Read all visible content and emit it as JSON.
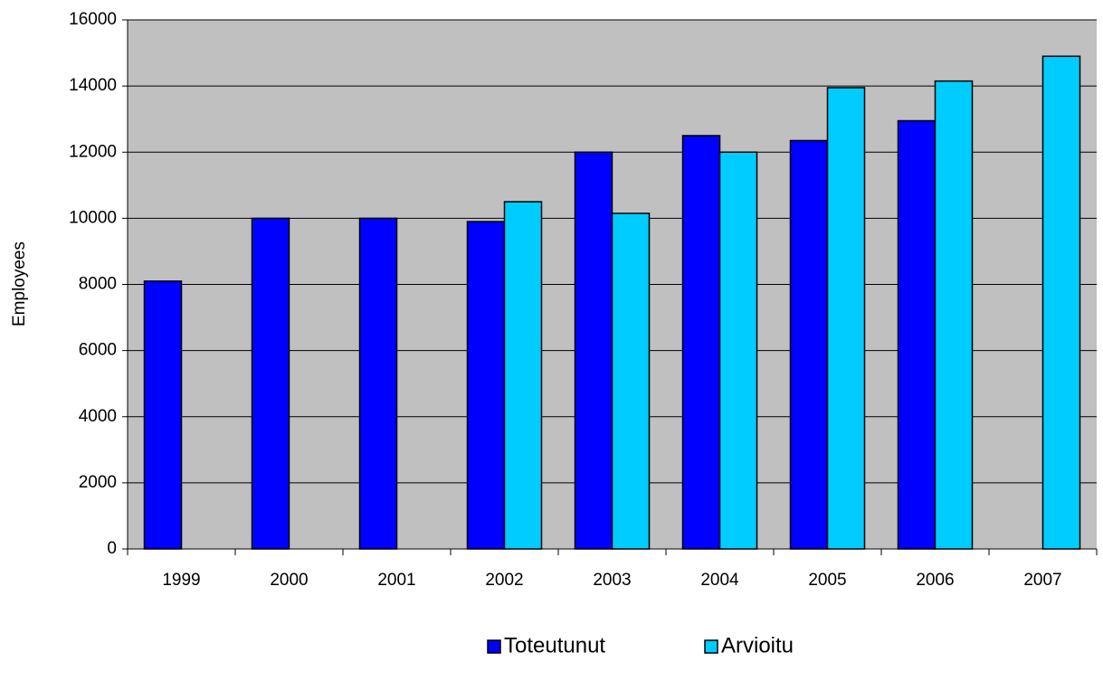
{
  "chart_data": {
    "type": "bar",
    "y_label": "Employees",
    "categories": [
      "1999",
      "2000",
      "2001",
      "2002",
      "2003",
      "2004",
      "2005",
      "2006",
      "2007"
    ],
    "series": [
      {
        "name": "Toteutunut",
        "color": "#0000ff",
        "values": [
          8100,
          10000,
          10000,
          9900,
          12000,
          12500,
          12350,
          12950,
          null
        ]
      },
      {
        "name": "Arvioitu",
        "color": "#00ccff",
        "values": [
          null,
          null,
          null,
          10500,
          10150,
          12000,
          13950,
          14150,
          14900
        ]
      }
    ],
    "ylim": [
      0,
      16000
    ],
    "yticks": [
      0,
      2000,
      4000,
      6000,
      8000,
      10000,
      12000,
      14000,
      16000
    ],
    "grid": true,
    "legend": "bottom"
  }
}
